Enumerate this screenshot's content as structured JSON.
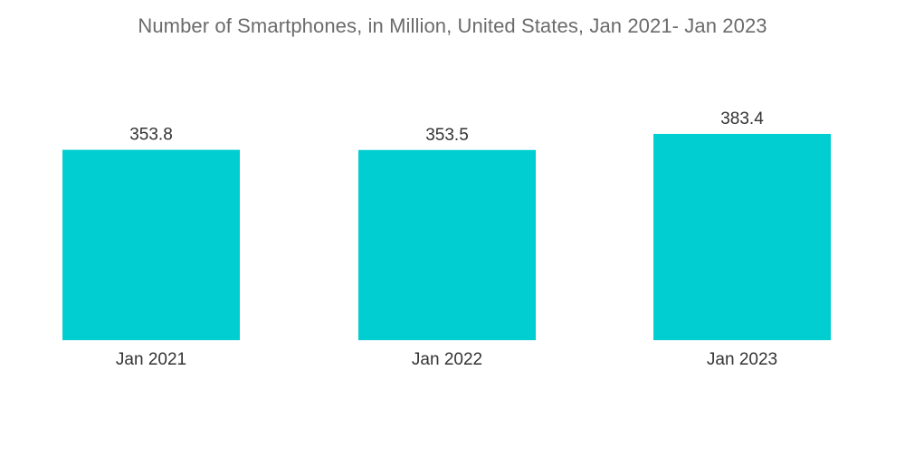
{
  "chart_data": {
    "type": "bar",
    "title": "Number of Smartphones, in Million, United States, Jan 2021- Jan 2023",
    "categories": [
      "Jan 2021",
      "Jan 2022",
      "Jan 2023"
    ],
    "values": [
      353.8,
      353.5,
      383.4
    ],
    "value_labels": [
      "353.8",
      "353.5",
      "383.4"
    ],
    "xlabel": "",
    "ylabel": "",
    "ylim": [
      0,
      383.4
    ],
    "grid": false,
    "legend": "none",
    "bar_color": "#00CED1"
  }
}
